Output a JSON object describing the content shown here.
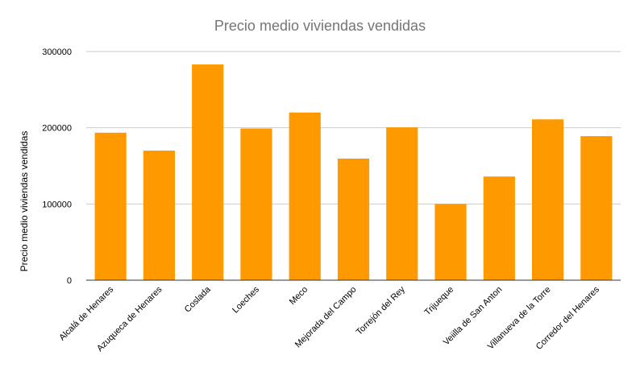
{
  "chart_data": {
    "type": "bar",
    "title": "Precio medio viviendas vendidas",
    "xlabel": "",
    "ylabel": "Precio medio viviendas vendidas",
    "categories": [
      "Alcalá de Henares",
      "Azuqueca de Henares",
      "Coslada",
      "Loeches",
      "Meco",
      "Mejorada del Campo",
      "Torrejón del Rey",
      "Trijueque",
      "Veiilla de San Anton",
      "Villanueva de la Torre",
      "Corredor del Henares"
    ],
    "values": [
      193500,
      170000,
      283000,
      199000,
      220000,
      159500,
      200500,
      100000,
      136000,
      211000,
      189000
    ],
    "ylim": [
      0,
      300000
    ],
    "yticks": [
      "0",
      "100000",
      "200000",
      "300000"
    ],
    "grid": true,
    "legend": "none",
    "bar_color": "#ff9900",
    "grid_color": "#cccccc",
    "axis_color": "#333333"
  }
}
